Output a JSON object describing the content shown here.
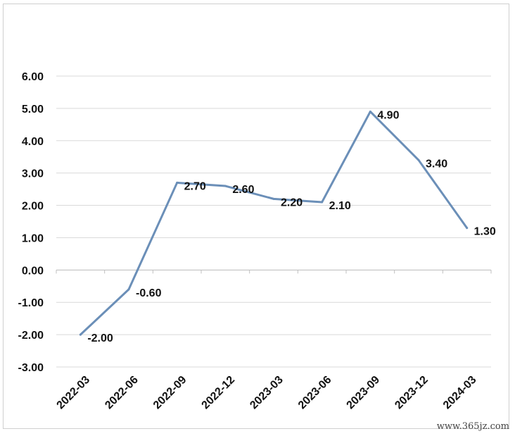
{
  "chart_data": {
    "type": "line",
    "title": "",
    "xlabel": "",
    "ylabel": "",
    "categories": [
      "2022-03",
      "2022-06",
      "2022-09",
      "2022-12",
      "2023-03",
      "2023-06",
      "2023-09",
      "2023-12",
      "2024-03"
    ],
    "values": [
      -2.0,
      -0.6,
      2.7,
      2.6,
      2.2,
      2.1,
      4.9,
      3.4,
      1.3
    ],
    "data_labels": [
      "-2.00",
      "-0.60",
      "2.70",
      "2.60",
      "2.20",
      "2.10",
      "4.90",
      "3.40",
      "1.30"
    ],
    "y_ticks": [
      "6.00",
      "5.00",
      "4.00",
      "3.00",
      "2.00",
      "1.00",
      "0.00",
      "-1.00",
      "-2.00",
      "-3.00"
    ],
    "ylim": [
      -3,
      6
    ],
    "grid": true,
    "legend": "none",
    "line_color": "#6b8fb8",
    "grid_color": "#d9d9d9"
  },
  "watermark": "www.365jz.com"
}
